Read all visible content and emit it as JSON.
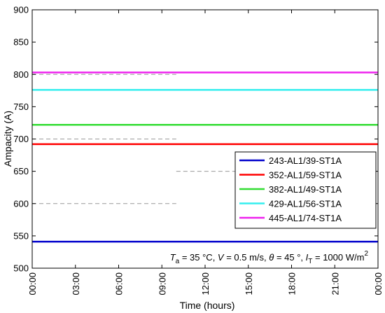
{
  "chart_data": {
    "type": "line",
    "xlabel": "Time (hours)",
    "ylabel": "Ampacity (A)",
    "ylim": [
      500,
      900
    ],
    "yticks": [
      500,
      550,
      600,
      650,
      700,
      750,
      800,
      850,
      900
    ],
    "xlim": [
      0,
      24
    ],
    "xticks": [
      0,
      3,
      6,
      9,
      12,
      15,
      18,
      21,
      24
    ],
    "xtick_labels": [
      "00:00",
      "03:00",
      "06:00",
      "09:00",
      "12:00",
      "15:00",
      "18:00",
      "21:00",
      "00:00"
    ],
    "grid": false,
    "legend_position": "lower-right",
    "series": [
      {
        "name": "243-AL1/39-ST1A",
        "color": "#0000cc",
        "x": [
          0,
          24
        ],
        "y": [
          541,
          541
        ]
      },
      {
        "name": "352-AL1/59-ST1A",
        "color": "#ff0000",
        "x": [
          0,
          24
        ],
        "y": [
          692,
          692
        ]
      },
      {
        "name": "382-AL1/49-ST1A",
        "color": "#33dd33",
        "x": [
          0,
          24
        ],
        "y": [
          722,
          722
        ]
      },
      {
        "name": "429-AL1/56-ST1A",
        "color": "#33eeee",
        "x": [
          0,
          24
        ],
        "y": [
          776,
          776
        ]
      },
      {
        "name": "445-AL1/74-ST1A",
        "color": "#ee22ee",
        "x": [
          0,
          24
        ],
        "y": [
          803,
          803
        ]
      }
    ],
    "reference_lines": [
      {
        "y": 800,
        "x": [
          0,
          10
        ],
        "color": "#999999"
      },
      {
        "y": 700,
        "x": [
          0,
          10
        ],
        "color": "#999999"
      },
      {
        "y": 600,
        "x": [
          0,
          10
        ],
        "color": "#999999"
      },
      {
        "y": 650,
        "x": [
          10,
          24
        ],
        "color": "#999999"
      }
    ],
    "annotation": {
      "T_symbol": "T",
      "T_sub": "a",
      "T_value": " = 35 °C, ",
      "V_symbol": "V",
      "V_value": " = 0.5 m/s, ",
      "theta_symbol": "θ",
      "theta_value": " = 45 °, ",
      "I_symbol": "I",
      "I_sub": "T",
      "I_value": " = 1000 W/m",
      "I_sup": "2"
    }
  }
}
